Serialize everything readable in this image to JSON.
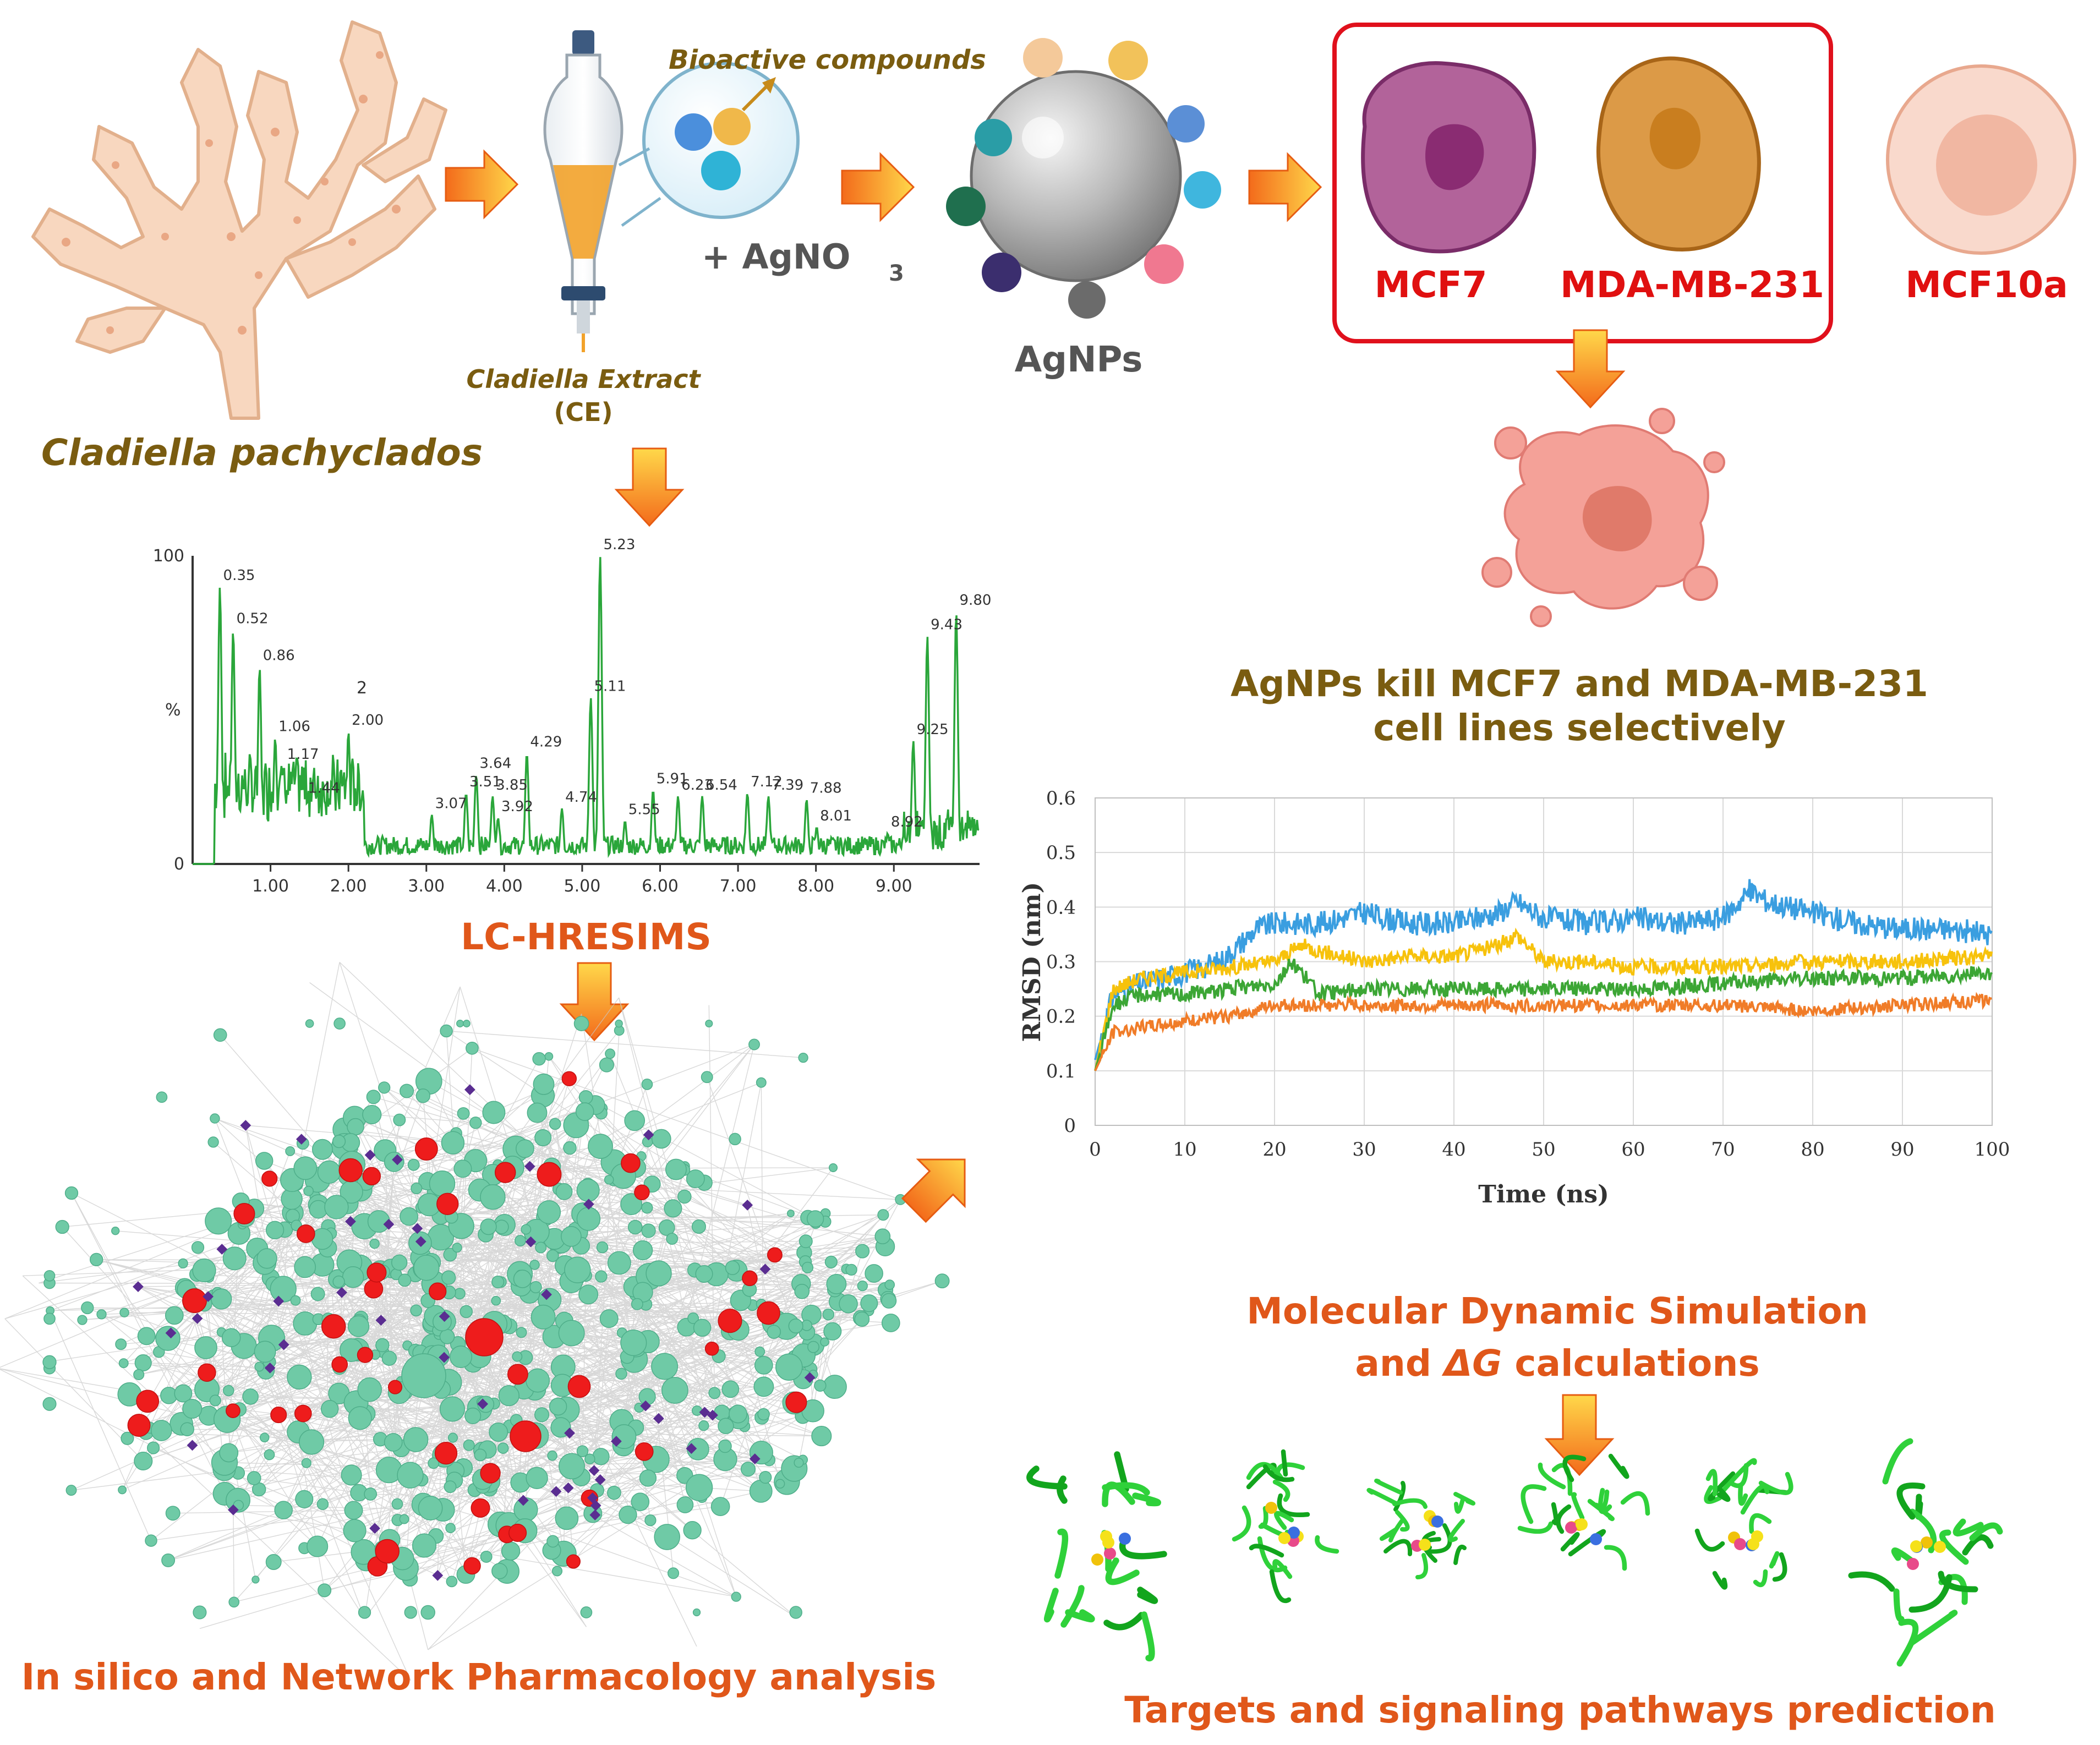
{
  "source": {
    "name": "Cladiella pachyclados"
  },
  "extraction": {
    "bioactive_label": "Bioactive compounds",
    "extract_label_line1": "Cladiella Extract",
    "extract_label_line2": "(CE)",
    "reagent_prefix": "+ AgNO",
    "reagent_sub": "3"
  },
  "nanoparticles": {
    "label": "AgNPs"
  },
  "cells": {
    "mcf7": "MCF7",
    "mda": "MDA-MB-231",
    "mcf10a": "MCF10a",
    "result_line1": "AgNPs kill MCF7 and MDA-MB-231",
    "result_line2": "cell lines selectively"
  },
  "lcms": {
    "title": "LC-HRESIMS",
    "y_tick_100": "100",
    "y_tick_0": "0",
    "y_axis_label": "%",
    "stray_mark": "2",
    "x_ticks": [
      "1.00",
      "2.00",
      "3.00",
      "4.00",
      "5.00",
      "6.00",
      "7.00",
      "8.00",
      "9.00"
    ],
    "peaks": [
      {
        "t": 0.35,
        "label": "0.35",
        "h": 90
      },
      {
        "t": 0.52,
        "label": "0.52",
        "h": 76
      },
      {
        "t": 0.86,
        "label": "0.86",
        "h": 64
      },
      {
        "t": 1.06,
        "label": "1.06",
        "h": 41
      },
      {
        "t": 1.17,
        "label": "1.17",
        "h": 32
      },
      {
        "t": 1.44,
        "label": "1.44",
        "h": 21
      },
      {
        "t": 2.0,
        "label": "2.00",
        "h": 43
      },
      {
        "t": 3.07,
        "label": "3.07",
        "h": 16
      },
      {
        "t": 3.51,
        "label": "3.51",
        "h": 23
      },
      {
        "t": 3.64,
        "label": "3.64",
        "h": 29
      },
      {
        "t": 3.85,
        "label": "3.85",
        "h": 22
      },
      {
        "t": 3.92,
        "label": "3.92",
        "h": 15
      },
      {
        "t": 4.29,
        "label": "4.29",
        "h": 36
      },
      {
        "t": 4.74,
        "label": "4.74",
        "h": 18
      },
      {
        "t": 5.11,
        "label": "5.11",
        "h": 54
      },
      {
        "t": 5.23,
        "label": "5.23",
        "h": 100
      },
      {
        "t": 5.55,
        "label": "5.55",
        "h": 14
      },
      {
        "t": 5.91,
        "label": "5.91",
        "h": 24
      },
      {
        "t": 6.23,
        "label": "6.23",
        "h": 22
      },
      {
        "t": 6.54,
        "label": "6.54",
        "h": 22
      },
      {
        "t": 7.12,
        "label": "7.12",
        "h": 23
      },
      {
        "t": 7.39,
        "label": "7.39",
        "h": 22
      },
      {
        "t": 7.88,
        "label": "7.88",
        "h": 21
      },
      {
        "t": 8.01,
        "label": "8.01",
        "h": 12
      },
      {
        "t": 8.92,
        "label": "8.92",
        "h": 10
      },
      {
        "t": 9.25,
        "label": "9.25",
        "h": 40
      },
      {
        "t": 9.43,
        "label": "9.43",
        "h": 74
      },
      {
        "t": 9.8,
        "label": "9.80",
        "h": 82
      }
    ]
  },
  "network": {
    "title": "In silico and Network Pharmacology analysis"
  },
  "md": {
    "title_line1": "Molecular Dynamic Simulation",
    "title_line2_prefix": "and ",
    "title_line2_symbol": "ΔG",
    "title_line2_suffix": " calculations"
  },
  "targets": {
    "title": "Targets and signaling pathways prediction"
  },
  "colors": {
    "arrow": "#f39a1c",
    "brown_text": "#7a5c10",
    "orange_text": "#e0571a",
    "red_text": "#e01010",
    "chrom_green": "#2aa63a",
    "node_teal": "#6fcaa6",
    "node_red": "#ee1c1c",
    "node_purple": "#5a2d91"
  },
  "chart_data": {
    "type": "line",
    "title": "",
    "xlabel": "Time (ns)",
    "ylabel": "RMSD (nm)",
    "xlim": [
      0,
      100
    ],
    "ylim": [
      0,
      0.6
    ],
    "xticks": [
      0,
      10,
      20,
      30,
      40,
      50,
      60,
      70,
      80,
      90,
      100
    ],
    "yticks": [
      0,
      0.1,
      0.2,
      0.3,
      0.4,
      0.5,
      0.6
    ],
    "grid": true,
    "series": [
      {
        "name": "blue",
        "color": "#3a9ee0",
        "x": [
          0,
          2,
          5,
          10,
          14,
          18,
          20,
          25,
          30,
          35,
          40,
          45,
          47,
          50,
          55,
          60,
          65,
          70,
          73,
          75,
          80,
          85,
          90,
          95,
          100
        ],
        "y": [
          0.12,
          0.24,
          0.26,
          0.28,
          0.3,
          0.36,
          0.37,
          0.37,
          0.39,
          0.37,
          0.37,
          0.39,
          0.41,
          0.38,
          0.37,
          0.38,
          0.37,
          0.38,
          0.43,
          0.41,
          0.39,
          0.37,
          0.36,
          0.36,
          0.35
        ]
      },
      {
        "name": "yellow",
        "color": "#f7c20c",
        "x": [
          0,
          2,
          5,
          10,
          15,
          20,
          23,
          25,
          30,
          35,
          40,
          45,
          47,
          50,
          55,
          60,
          70,
          80,
          90,
          100
        ],
        "y": [
          0.1,
          0.25,
          0.27,
          0.28,
          0.29,
          0.3,
          0.33,
          0.32,
          0.3,
          0.31,
          0.31,
          0.33,
          0.35,
          0.3,
          0.3,
          0.29,
          0.29,
          0.3,
          0.3,
          0.31
        ]
      },
      {
        "name": "green",
        "color": "#3ca635",
        "x": [
          0,
          2,
          5,
          10,
          15,
          20,
          22,
          25,
          30,
          40,
          50,
          60,
          70,
          80,
          90,
          100
        ],
        "y": [
          0.1,
          0.22,
          0.24,
          0.24,
          0.25,
          0.26,
          0.3,
          0.24,
          0.25,
          0.25,
          0.25,
          0.25,
          0.26,
          0.27,
          0.27,
          0.28
        ]
      },
      {
        "name": "orange",
        "color": "#f07c28",
        "x": [
          0,
          2,
          5,
          10,
          15,
          20,
          25,
          30,
          40,
          50,
          60,
          70,
          80,
          90,
          100
        ],
        "y": [
          0.1,
          0.17,
          0.18,
          0.19,
          0.2,
          0.22,
          0.22,
          0.22,
          0.22,
          0.22,
          0.22,
          0.22,
          0.21,
          0.22,
          0.23
        ]
      }
    ]
  }
}
